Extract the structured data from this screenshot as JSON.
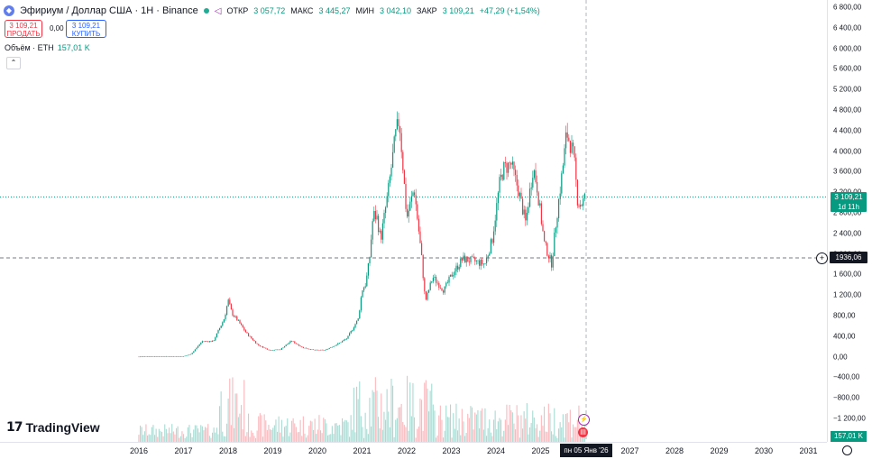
{
  "header": {
    "title": "Эфириум / Доллар США · 1Н · Binance",
    "ohlc": [
      {
        "k": "ОТКР",
        "v": "3 057,72"
      },
      {
        "k": "МАКС",
        "v": "3 445,27"
      },
      {
        "k": "МИН",
        "v": "3 042,10"
      },
      {
        "k": "ЗАКР",
        "v": "3 109,21"
      }
    ],
    "change": "+47,29 (+1,54%)"
  },
  "trade": {
    "sell_price": "3 109,21",
    "sell_label": "ПРОДАТЬ",
    "spread": "0,00",
    "buy_price": "3 109,21",
    "buy_label": "КУПИТЬ"
  },
  "volume": {
    "label": "Объём · ETH",
    "value": "157,01 K"
  },
  "yaxis": {
    "ticks": [
      "6 800,00",
      "6 400,00",
      "6 000,00",
      "5 600,00",
      "5 200,00",
      "4 800,00",
      "4 400,00",
      "4 000,00",
      "3 600,00",
      "3 200,00",
      "2 800,00",
      "2 400,00",
      "2 000,00",
      "1 600,00",
      "1 200,00",
      "800,00",
      "400,00",
      "0,00",
      "−400,00",
      "−800,00",
      "−1 200,00"
    ],
    "price_badge_value": "3 109,21",
    "price_badge_countdown": "1d 11h",
    "level_value": "1936,06",
    "volume_badge": "157,01 K"
  },
  "xaxis": {
    "ticks": [
      "2016",
      "2017",
      "2018",
      "2019",
      "2020",
      "2021",
      "2022",
      "2023",
      "2024",
      "2025",
      "2027",
      "2028",
      "2029",
      "2030",
      "2031"
    ],
    "cursor_date": "пн 05 Янв '26"
  },
  "logo": {
    "text": "TradingView"
  },
  "colors": {
    "up": "#089981",
    "down": "#f23645",
    "accent": "#2962ff"
  },
  "chart_data": {
    "type": "candlestick",
    "interval": "1M",
    "unit": "USD",
    "ylim": [
      -1200,
      6800
    ],
    "x": [
      "2016-01",
      "2016-07",
      "2017-01",
      "2017-03",
      "2017-06",
      "2017-09",
      "2017-12",
      "2018-01",
      "2018-02",
      "2018-04",
      "2018-06",
      "2018-09",
      "2018-12",
      "2019-03",
      "2019-06",
      "2019-09",
      "2019-12",
      "2020-03",
      "2020-06",
      "2020-09",
      "2020-12",
      "2021-01",
      "2021-02",
      "2021-03",
      "2021-04",
      "2021-05",
      "2021-06",
      "2021-08",
      "2021-10",
      "2021-11",
      "2021-12",
      "2022-01",
      "2022-03",
      "2022-05",
      "2022-06",
      "2022-08",
      "2022-11",
      "2023-01",
      "2023-04",
      "2023-07",
      "2023-10",
      "2023-12",
      "2024-02",
      "2024-03",
      "2024-05",
      "2024-07",
      "2024-09",
      "2024-11",
      "2024-12",
      "2025-02",
      "2025-04",
      "2025-05",
      "2025-07",
      "2025-08",
      "2025-09",
      "2025-10",
      "2025-11",
      "2025-12",
      "2026-01"
    ],
    "close": [
      2,
      10,
      10,
      50,
      300,
      300,
      750,
      1100,
      850,
      660,
      450,
      230,
      130,
      140,
      310,
      180,
      130,
      130,
      230,
      360,
      740,
      1300,
      1420,
      1900,
      2780,
      2700,
      2280,
      3200,
      4300,
      4630,
      3700,
      2690,
      3280,
      1940,
      1070,
      1550,
      1290,
      1580,
      1900,
      1860,
      1800,
      2280,
      3380,
      3650,
      3760,
      3250,
      2600,
      3700,
      3330,
      2200,
      1800,
      2530,
      3700,
      4360,
      4140,
      3850,
      2990,
      2970,
      3109
    ]
  }
}
